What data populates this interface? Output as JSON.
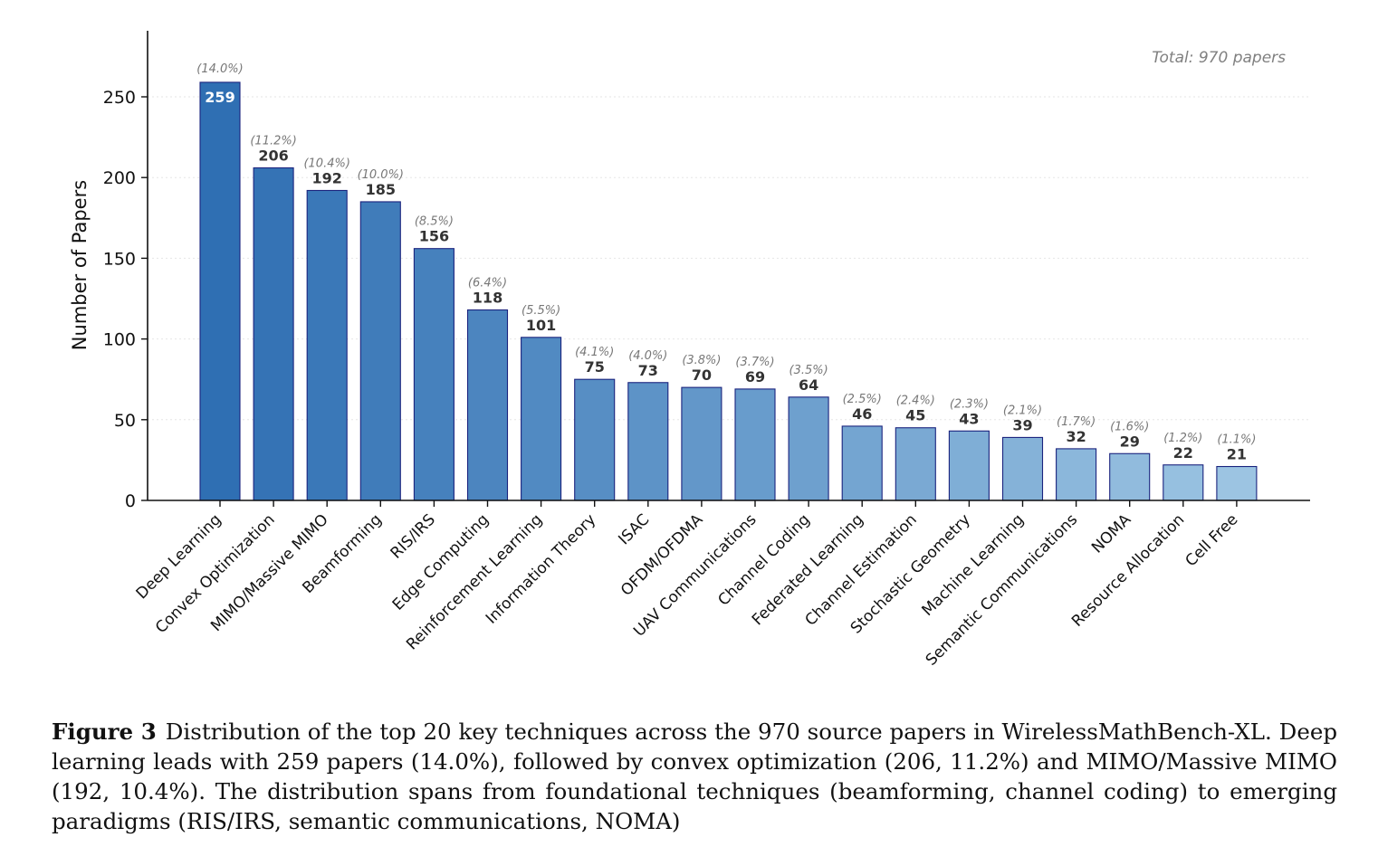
{
  "chart_data": {
    "type": "bar",
    "title": "",
    "xlabel": "",
    "ylabel": "Number of Papers",
    "ylim": [
      0,
      290
    ],
    "yticks": [
      0,
      50,
      100,
      150,
      200,
      250
    ],
    "grid": "horizontal-dotted",
    "annotation": "Total: 970 papers",
    "annotation_position": "top-right",
    "categories": [
      "Deep Learning",
      "Convex Optimization",
      "MIMO/Massive MIMO",
      "Beamforming",
      "RIS/IRS",
      "Edge Computing",
      "Reinforcement Learning",
      "Information Theory",
      "ISAC",
      "OFDM/OFDMA",
      "UAV Communications",
      "Channel Coding",
      "Federated Learning",
      "Channel Estimation",
      "Stochastic Geometry",
      "Machine Learning",
      "Semantic Communications",
      "NOMA",
      "Resource Allocation",
      "Cell Free"
    ],
    "values": [
      259,
      206,
      192,
      185,
      156,
      118,
      101,
      75,
      73,
      70,
      69,
      64,
      46,
      45,
      43,
      39,
      32,
      29,
      22,
      21
    ],
    "percent_labels": [
      "(14.0%)",
      "(11.2%)",
      "(10.4%)",
      "(10.0%)",
      "(8.5%)",
      "(6.4%)",
      "(5.5%)",
      "(4.1%)",
      "(4.0%)",
      "(3.8%)",
      "(3.7%)",
      "(3.5%)",
      "(2.5%)",
      "(2.4%)",
      "(2.3%)",
      "(2.1%)",
      "(1.7%)",
      "(1.6%)",
      "(1.2%)",
      "(1.1%)"
    ],
    "colors": {
      "bar_start": "#2f6fb3",
      "bar_end": "#9cc4e2",
      "bar_edge": "#1a237e",
      "value_label": "#333333",
      "value_label_inside": "#ffffff",
      "percent_label": "#777777",
      "annotation": "#808080"
    }
  },
  "caption": {
    "label": "Figure 3",
    "text": "Distribution of the top 20 key techniques across the 970 source papers in WirelessMathBench-XL. Deep learning leads with 259 papers (14.0%), followed by convex optimization (206, 11.2%) and MIMO/Massive MIMO (192, 10.4%). The distribution spans from foundational techniques (beamforming, channel coding) to emerging paradigms (RIS/IRS, semantic communications, NOMA)"
  }
}
